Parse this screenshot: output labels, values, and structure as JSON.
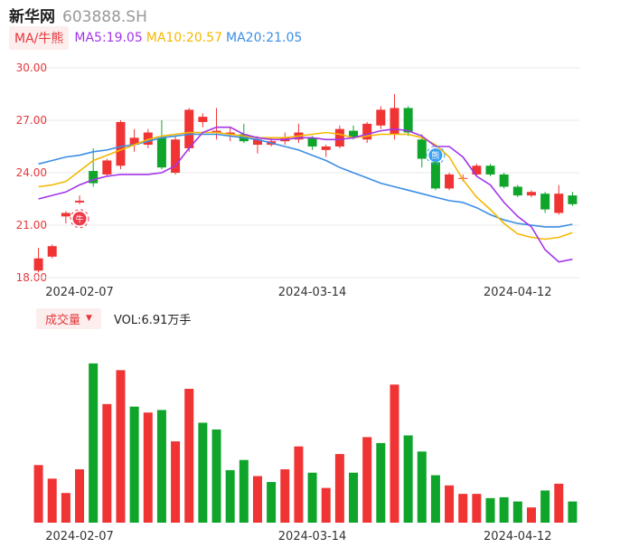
{
  "stock": {
    "name": "新华网",
    "code": "603888.SH"
  },
  "ma_bar": {
    "button_label": "MA/牛熊",
    "items": [
      {
        "label": "MA5:19.05",
        "color": "#a335e8"
      },
      {
        "label": "MA10:20.57",
        "color": "#f5b800"
      },
      {
        "label": "MA20:21.05",
        "color": "#3a8ee6"
      }
    ]
  },
  "volume_bar": {
    "button_label": "成交量",
    "text": "VOL:6.91万手"
  },
  "colors": {
    "up": "#f03333",
    "down": "#0ea52a",
    "grid": "#e8e8e8",
    "axis_label": "#e5383b",
    "date_label": "#333333"
  },
  "chart_data": [
    {
      "type": "candlestick",
      "title": "",
      "y_ticks": [
        "30.00",
        "27.00",
        "24.00",
        "21.00",
        "18.00"
      ],
      "ylim": [
        18,
        30
      ],
      "x_tick_labels": [
        "2024-02-07",
        "2024-03-14",
        "2024-04-12"
      ],
      "x_tick_indices": [
        3,
        20,
        35
      ],
      "candles": [
        {
          "o": 18.4,
          "c": 19.1,
          "h": 19.7,
          "l": 18.3
        },
        {
          "o": 19.2,
          "c": 19.8,
          "h": 19.9,
          "l": 19.1
        },
        {
          "o": 21.5,
          "c": 21.7,
          "h": 21.8,
          "l": 21.1
        },
        {
          "o": 22.3,
          "c": 22.4,
          "h": 22.7,
          "l": 22.2
        },
        {
          "o": 24.1,
          "c": 23.4,
          "h": 25.4,
          "l": 23.2
        },
        {
          "o": 23.9,
          "c": 24.7,
          "h": 24.8,
          "l": 23.8
        },
        {
          "o": 24.4,
          "c": 26.9,
          "h": 27.0,
          "l": 24.2
        },
        {
          "o": 25.6,
          "c": 26.0,
          "h": 26.5,
          "l": 25.2
        },
        {
          "o": 25.6,
          "c": 26.3,
          "h": 26.5,
          "l": 25.4
        },
        {
          "o": 26.0,
          "c": 24.3,
          "h": 27.0,
          "l": 24.2
        },
        {
          "o": 24.0,
          "c": 25.9,
          "h": 26.1,
          "l": 23.9
        },
        {
          "o": 25.4,
          "c": 27.6,
          "h": 27.7,
          "l": 25.2
        },
        {
          "o": 26.9,
          "c": 27.2,
          "h": 27.4,
          "l": 26.6
        },
        {
          "o": 26.3,
          "c": 26.4,
          "h": 27.7,
          "l": 25.9
        },
        {
          "o": 26.2,
          "c": 26.3,
          "h": 26.6,
          "l": 25.8
        },
        {
          "o": 26.2,
          "c": 25.8,
          "h": 26.8,
          "l": 25.7
        },
        {
          "o": 25.6,
          "c": 25.9,
          "h": 26.1,
          "l": 25.1
        },
        {
          "o": 25.6,
          "c": 25.8,
          "h": 26.0,
          "l": 25.5
        },
        {
          "o": 25.8,
          "c": 26.0,
          "h": 26.3,
          "l": 25.6
        },
        {
          "o": 25.9,
          "c": 26.3,
          "h": 26.8,
          "l": 25.7
        },
        {
          "o": 26.0,
          "c": 25.5,
          "h": 26.1,
          "l": 25.3
        },
        {
          "o": 25.3,
          "c": 25.5,
          "h": 25.6,
          "l": 24.9
        },
        {
          "o": 25.5,
          "c": 26.5,
          "h": 26.7,
          "l": 25.4
        },
        {
          "o": 26.4,
          "c": 26.0,
          "h": 26.7,
          "l": 25.9
        },
        {
          "o": 25.9,
          "c": 26.8,
          "h": 26.9,
          "l": 25.7
        },
        {
          "o": 26.7,
          "c": 27.6,
          "h": 27.8,
          "l": 26.5
        },
        {
          "o": 26.2,
          "c": 27.7,
          "h": 28.5,
          "l": 25.9
        },
        {
          "o": 27.7,
          "c": 26.3,
          "h": 27.8,
          "l": 26.1
        },
        {
          "o": 25.9,
          "c": 24.8,
          "h": 26.2,
          "l": 24.3
        },
        {
          "o": 24.6,
          "c": 23.1,
          "h": 25.0,
          "l": 23.0
        },
        {
          "o": 23.1,
          "c": 23.9,
          "h": 24.0,
          "l": 23.0
        },
        {
          "o": 23.7,
          "c": 23.7,
          "h": 23.9,
          "l": 23.5
        },
        {
          "o": 23.9,
          "c": 24.4,
          "h": 24.5,
          "l": 23.8
        },
        {
          "o": 24.4,
          "c": 23.9,
          "h": 24.5,
          "l": 23.8
        },
        {
          "o": 23.9,
          "c": 23.2,
          "h": 24.0,
          "l": 23.1
        },
        {
          "o": 23.2,
          "c": 22.7,
          "h": 23.3,
          "l": 22.6
        },
        {
          "o": 22.7,
          "c": 22.9,
          "h": 23.0,
          "l": 22.6
        },
        {
          "o": 22.8,
          "c": 21.9,
          "h": 22.9,
          "l": 21.7
        },
        {
          "o": 21.7,
          "c": 22.8,
          "h": 23.3,
          "l": 21.6
        },
        {
          "o": 22.7,
          "c": 22.2,
          "h": 22.9,
          "l": 22.1
        }
      ],
      "ma5": [
        22.5,
        22.7,
        22.9,
        23.3,
        23.6,
        23.8,
        23.9,
        23.9,
        23.9,
        24.0,
        24.4,
        25.4,
        26.3,
        26.6,
        26.6,
        26.2,
        26.0,
        25.9,
        25.9,
        26.0,
        26.0,
        25.9,
        25.9,
        26.0,
        26.2,
        26.4,
        26.5,
        26.4,
        26.1,
        25.5,
        25.5,
        24.9,
        23.8,
        23.3,
        22.3,
        21.5,
        20.9,
        19.6,
        18.9,
        19.05
      ],
      "ma10": [
        23.2,
        23.3,
        23.5,
        24.1,
        24.7,
        25.0,
        25.3,
        25.6,
        25.9,
        26.1,
        26.2,
        26.3,
        26.3,
        26.3,
        26.2,
        26.1,
        26.0,
        26.0,
        26.0,
        26.1,
        26.2,
        26.3,
        26.2,
        26.0,
        26.1,
        26.2,
        26.2,
        26.2,
        26.0,
        25.6,
        24.9,
        23.6,
        22.6,
        21.9,
        21.1,
        20.5,
        20.3,
        20.2,
        20.3,
        20.57
      ],
      "ma20": [
        24.5,
        24.7,
        24.9,
        25.0,
        25.2,
        25.3,
        25.5,
        25.6,
        25.8,
        26.0,
        26.1,
        26.2,
        26.2,
        26.2,
        26.1,
        26.0,
        25.9,
        25.7,
        25.5,
        25.3,
        25.0,
        24.7,
        24.3,
        24.0,
        23.7,
        23.4,
        23.2,
        23.0,
        22.8,
        22.6,
        22.4,
        22.3,
        22.0,
        21.6,
        21.3,
        21.1,
        21.0,
        20.9,
        20.9,
        21.05
      ],
      "markers": [
        {
          "index": 3,
          "label": "牛",
          "kind": "bull"
        },
        {
          "index": 29,
          "label": "熊",
          "kind": "bear"
        }
      ]
    },
    {
      "type": "bar",
      "title": "",
      "x_tick_labels": [
        "2024-02-07",
        "2024-03-14",
        "2024-04-12"
      ],
      "x_tick_indices": [
        3,
        20,
        35
      ],
      "ylim": [
        0,
        190
      ],
      "values": [
        68,
        52,
        35,
        63,
        188,
        140,
        180,
        137,
        130,
        133,
        96,
        158,
        118,
        110,
        62,
        74,
        55,
        48,
        63,
        90,
        59,
        41,
        81,
        59,
        101,
        94,
        163,
        103,
        84,
        56,
        44,
        34,
        34,
        29,
        30,
        25,
        18,
        38,
        46,
        25
      ],
      "up": [
        true,
        true,
        true,
        true,
        false,
        true,
        true,
        false,
        true,
        false,
        true,
        true,
        false,
        false,
        false,
        false,
        true,
        false,
        true,
        true,
        false,
        true,
        true,
        false,
        true,
        false,
        true,
        false,
        false,
        false,
        true,
        true,
        true,
        false,
        false,
        false,
        true,
        false,
        true,
        false
      ]
    }
  ]
}
